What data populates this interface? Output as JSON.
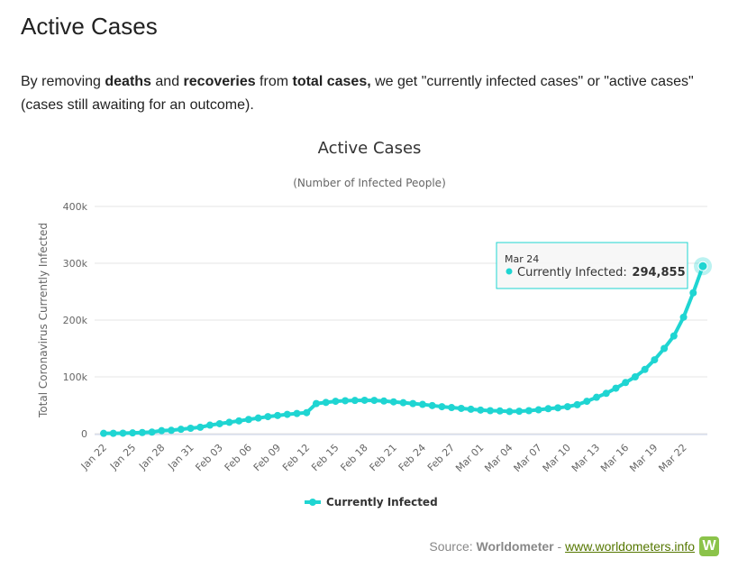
{
  "heading": "Active Cases",
  "intro": [
    "By removing ",
    "deaths",
    " and ",
    "recoveries",
    " from ",
    "total cases,",
    " we get \"currently infected cases\" or \"active cases\" (cases still awaiting for an outcome)."
  ],
  "chart_data": {
    "type": "line",
    "title": "Active Cases",
    "subtitle": "(Number of Infected People)",
    "y_label": "Total Coronavirus Currently Infected",
    "categories": [
      "Jan 22",
      null,
      null,
      "Jan 25",
      null,
      null,
      "Jan 28",
      null,
      null,
      "Jan 31",
      null,
      null,
      "Feb 03",
      null,
      null,
      "Feb 06",
      null,
      null,
      "Feb 09",
      null,
      null,
      "Feb 12",
      null,
      null,
      "Feb 15",
      null,
      null,
      "Feb 18",
      null,
      null,
      "Feb 21",
      null,
      null,
      "Feb 24",
      null,
      null,
      "Feb 27",
      null,
      null,
      "Mar 01",
      null,
      null,
      "Mar 04",
      null,
      null,
      "Mar 07",
      null,
      null,
      "Mar 10",
      null,
      null,
      "Mar 13",
      null,
      null,
      "Mar 16",
      null,
      null,
      "Mar 19",
      null,
      null,
      "Mar 22",
      null,
      null
    ],
    "series": [
      {
        "name": "Currently Infected",
        "color": "#1fd5d2",
        "values": [
          510,
          610,
          880,
          1320,
          1980,
          2780,
          5300,
          5900,
          7700,
          9500,
          11300,
          15000,
          17500,
          20000,
          22500,
          25000,
          27500,
          30000,
          32000,
          34000,
          35500,
          37000,
          53000,
          55000,
          57000,
          58000,
          58500,
          58800,
          58600,
          57500,
          56000,
          54500,
          53000,
          51500,
          49500,
          47500,
          46000,
          44500,
          43000,
          41500,
          40500,
          40000,
          39000,
          39500,
          40500,
          42000,
          44000,
          45500,
          47500,
          51000,
          57000,
          64000,
          71000,
          80000,
          90000,
          100000,
          113000,
          130000,
          150000,
          172000,
          205000,
          248000,
          294855
        ]
      }
    ],
    "ylim": [
      0,
      400000
    ],
    "yticks": [
      0,
      {
        "value": 100000,
        "label": "100k"
      },
      {
        "value": 200000,
        "label": "200k"
      },
      {
        "value": 300000,
        "label": "300k"
      },
      {
        "value": 400000,
        "label": "400k"
      }
    ],
    "grid": true,
    "tooltip": {
      "category": "Mar 24",
      "value": 294855,
      "label": "294,855"
    }
  },
  "source": {
    "prefix": "Source: ",
    "name": "Worldometer",
    "sep": " - ",
    "url": "www.worldometers.info",
    "logo": "W"
  }
}
